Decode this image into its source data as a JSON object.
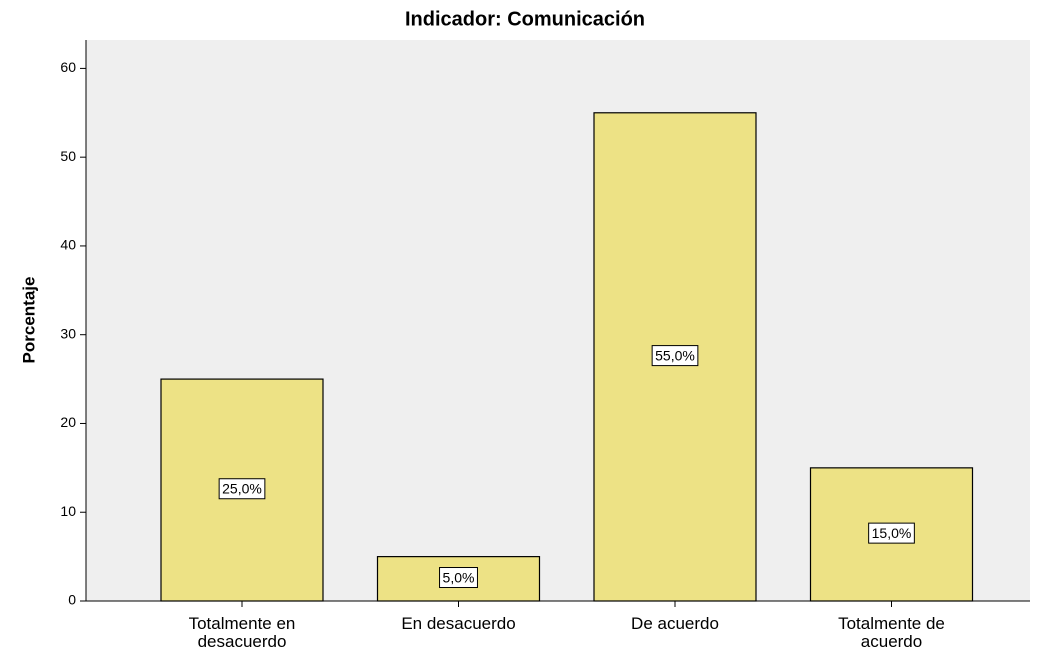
{
  "chart_data": {
    "type": "bar",
    "title": "Indicador: Comunicación",
    "y_label": "Porcentaje",
    "categories": [
      "Totalmente en desacuerdo",
      "En desacuerdo",
      "De acuerdo",
      "Totalmente de acuerdo"
    ],
    "values": [
      25,
      5,
      55,
      15
    ],
    "value_labels": [
      "25,0%",
      "5,0%",
      "55,0%",
      "15,0%"
    ],
    "color": "#ede285",
    "ylim": [
      0,
      63.2
    ],
    "yticks": [
      0,
      10,
      20,
      30,
      40,
      50,
      60
    ]
  }
}
